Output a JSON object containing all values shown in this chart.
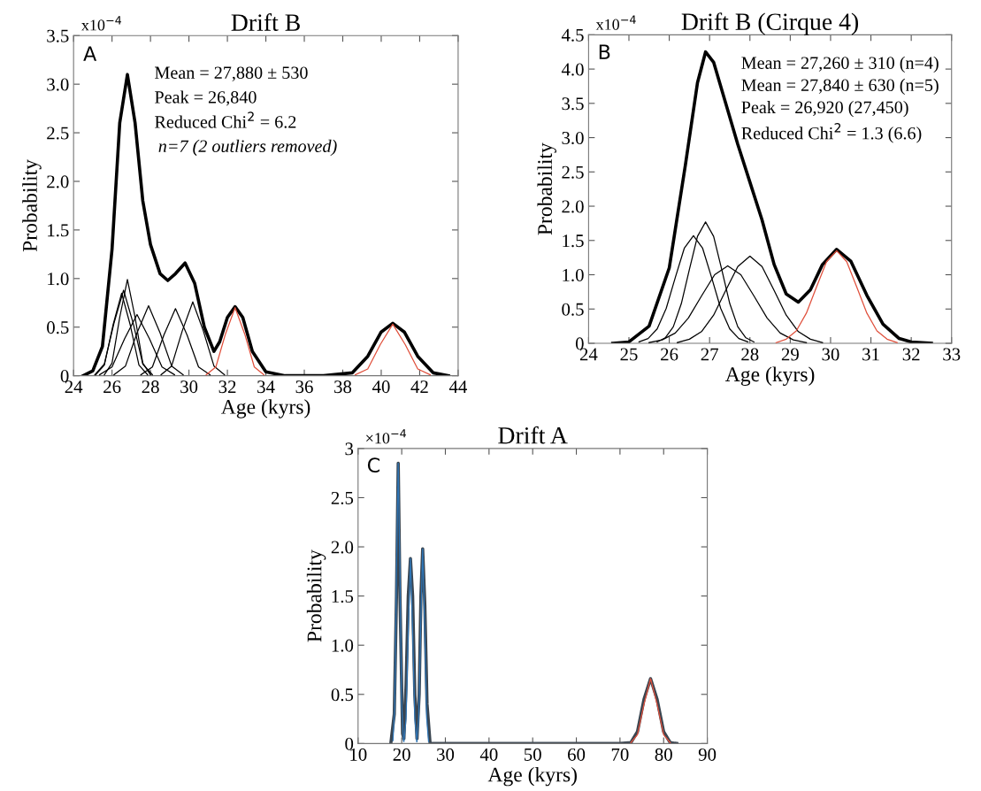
{
  "chart_data": [
    {
      "type": "line",
      "title": "Drift B",
      "xlabel": "Age (kyrs)",
      "ylabel": "Probability",
      "annotations": [
        "x10$^{−4}$",
        "A",
        "Mean = 27,880 ± 530",
        "Peak = 26,840",
        "Reduced Chi$^{2}$ = 6.2",
        "n=7 (2 outliers removed)"
      ],
      "xlim": [
        24,
        44
      ],
      "xticks": [
        24,
        26,
        28,
        30,
        32,
        34,
        36,
        38,
        40,
        42,
        44
      ],
      "ylim": [
        0,
        3.5
      ],
      "yticks": [
        0,
        0.5,
        {
          "value": 1,
          "label": "1.0"
        },
        1.5,
        {
          "value": 2,
          "label": "2.0"
        },
        2.5,
        {
          "value": 3,
          "label": "3.0"
        },
        3.5
      ],
      "series": [
        {
          "color": "#000000",
          "x": [
            24.5,
            25,
            25.5,
            26,
            26.4,
            26.8,
            27.2,
            27.6,
            28,
            28.5,
            28.9,
            29.3,
            29.8,
            30.3,
            30.8,
            31.3,
            31.6,
            32,
            32.4,
            32.8,
            33.3,
            34,
            35,
            37,
            38.5,
            39.3,
            40,
            40.6,
            41.2,
            41.9,
            42.7,
            43.5
          ],
          "values": [
            0,
            0.05,
            0.3,
            1.3,
            2.6,
            3.1,
            2.6,
            1.8,
            1.35,
            1.05,
            0.98,
            1.05,
            1.16,
            0.95,
            0.5,
            0.25,
            0.35,
            0.6,
            0.71,
            0.6,
            0.25,
            0.04,
            0,
            0,
            0.03,
            0.2,
            0.45,
            0.54,
            0.45,
            0.2,
            0.03,
            0
          ]
        },
        {
          "color": "#000000",
          "x": [
            25.15,
            25.6,
            26.05,
            26.5,
            26.95,
            27.4,
            27.85
          ],
          "values": [
            0.01,
            0.11,
            0.52,
            0.85,
            0.52,
            0.11,
            0.01
          ]
        },
        {
          "color": "#000000",
          "x": [
            25.1,
            25.6,
            26.1,
            26.6,
            27.1,
            27.6,
            28.1
          ],
          "values": [
            0.01,
            0.12,
            0.54,
            0.88,
            0.54,
            0.12,
            0.01
          ]
        },
        {
          "color": "#000000",
          "x": [
            25.6,
            26,
            26.4,
            26.8,
            27.2,
            27.6,
            28
          ],
          "values": [
            0.01,
            0.13,
            0.6,
            0.99,
            0.6,
            0.13,
            0.01
          ]
        },
        {
          "color": "#000000",
          "x": [
            25.35,
            26,
            26.65,
            27.3,
            27.95,
            28.6,
            29.25
          ],
          "values": [
            0.01,
            0.09,
            0.38,
            0.63,
            0.38,
            0.09,
            0.01
          ]
        },
        {
          "color": "#000000",
          "x": [
            26.1,
            26.7,
            27.3,
            27.9,
            28.5,
            29.1,
            29.7
          ],
          "values": [
            0.01,
            0.1,
            0.44,
            0.72,
            0.44,
            0.1,
            0.01
          ]
        },
        {
          "color": "#000000",
          "x": [
            27.5,
            28.1,
            28.7,
            29.3,
            29.9,
            30.5,
            31.1
          ],
          "values": [
            0.01,
            0.09,
            0.42,
            0.69,
            0.42,
            0.09,
            0.01
          ]
        },
        {
          "color": "#000000",
          "x": [
            28.55,
            29.1,
            29.65,
            30.2,
            30.75,
            31.3,
            31.85
          ],
          "values": [
            0.01,
            0.1,
            0.46,
            0.76,
            0.46,
            0.1,
            0.01
          ]
        },
        {
          "color": "#e0503c",
          "x": [
            30.9,
            31.4,
            31.9,
            32.4,
            32.9,
            33.4,
            33.9
          ],
          "values": [
            0.01,
            0.09,
            0.43,
            0.7,
            0.43,
            0.09,
            0.01
          ]
        },
        {
          "color": "#e0503c",
          "x": [
            38.65,
            39.3,
            39.95,
            40.6,
            41.25,
            41.9,
            42.55
          ],
          "values": [
            0.01,
            0.07,
            0.32,
            0.53,
            0.32,
            0.07,
            0.01
          ]
        }
      ]
    },
    {
      "type": "line",
      "title": "Drift B (Cirque 4)",
      "xlabel": "Age (kyrs)",
      "ylabel": "Probability",
      "annotations": [
        "x10$^{−4}$",
        "B",
        "Mean = 27,260 ± 310 (n=4)",
        "Mean = 27,840 ± 630 (n=5)",
        "Peak = 26,920 (27,450)",
        "Reduced Chi$^{2}$ = 1.3 (6.6)"
      ],
      "xlim": [
        24,
        33
      ],
      "xticks": [
        24,
        25,
        26,
        27,
        28,
        29,
        30,
        31,
        32,
        33
      ],
      "ylim": [
        0,
        4.5
      ],
      "yticks": [
        0,
        0.5,
        {
          "value": 1,
          "label": "1.0"
        },
        1.5,
        {
          "value": 2,
          "label": "2.0"
        },
        2.5,
        {
          "value": 3,
          "label": "3.0"
        },
        3.5,
        {
          "value": 4,
          "label": "4.0"
        },
        4.5
      ],
      "series": [
        {
          "color": "#000000",
          "x": [
            24.6,
            25,
            25.5,
            26,
            26.4,
            26.7,
            26.9,
            27.1,
            27.4,
            27.7,
            28,
            28.3,
            28.6,
            28.9,
            29.2,
            29.5,
            29.8,
            30.15,
            30.5,
            30.9,
            31.3,
            31.7,
            32,
            32.5
          ],
          "values": [
            0,
            0.02,
            0.25,
            1.1,
            2.6,
            3.8,
            4.25,
            4.1,
            3.5,
            2.9,
            2.35,
            1.8,
            1.15,
            0.72,
            0.6,
            0.78,
            1.15,
            1.37,
            1.2,
            0.7,
            0.28,
            0.07,
            0.02,
            0
          ]
        },
        {
          "color": "#000000",
          "x": [
            25.25,
            25.475,
            25.7,
            25.925,
            26.15,
            26.375,
            26.6,
            26.825,
            27.05,
            27.275,
            27.5,
            27.725,
            27.95
          ],
          "values": [
            0.02,
            0.07,
            0.21,
            0.51,
            0.96,
            1.39,
            1.57,
            1.39,
            0.96,
            0.51,
            0.21,
            0.07,
            0.02
          ]
        },
        {
          "color": "#000000",
          "x": [
            25.7,
            25.9,
            26.1,
            26.3,
            26.5,
            26.7,
            26.9,
            27.1,
            27.3,
            27.5,
            27.7,
            27.9,
            28.1
          ],
          "values": [
            0.02,
            0.08,
            0.24,
            0.58,
            1.08,
            1.56,
            1.77,
            1.56,
            1.08,
            0.58,
            0.24,
            0.08,
            0.02
          ]
        },
        {
          "color": "#000000",
          "x": [
            25.5,
            25.825,
            26.15,
            26.475,
            26.8,
            27.125,
            27.45,
            27.775,
            28.1,
            28.425,
            28.75,
            29.075,
            29.4
          ],
          "values": [
            0.01,
            0.05,
            0.15,
            0.37,
            0.69,
            1.0,
            1.13,
            1.0,
            0.69,
            0.37,
            0.15,
            0.05,
            0.01
          ]
        },
        {
          "color": "#000000",
          "x": [
            26.2,
            26.5,
            26.8,
            27.1,
            27.4,
            27.7,
            28,
            28.3,
            28.6,
            28.9,
            29.2,
            29.5,
            29.8
          ],
          "values": [
            0.01,
            0.06,
            0.17,
            0.41,
            0.77,
            1.12,
            1.27,
            1.12,
            0.77,
            0.41,
            0.17,
            0.06,
            0.01
          ]
        },
        {
          "color": "#e0503c",
          "x": [
            28.65,
            28.9,
            29.15,
            29.4,
            29.65,
            29.9,
            30.15,
            30.4,
            30.65,
            30.9,
            31.15,
            31.4,
            31.65
          ],
          "values": [
            0.01,
            0.06,
            0.18,
            0.44,
            0.82,
            1.19,
            1.35,
            1.19,
            0.82,
            0.44,
            0.18,
            0.06,
            0.01
          ]
        }
      ]
    },
    {
      "type": "line",
      "title": "Drift A",
      "xlabel": "Age (kyrs)",
      "ylabel": "Probability",
      "annotations": [
        "×10$^{−4}$",
        "C"
      ],
      "xlim": [
        10,
        90
      ],
      "xticks": [
        10,
        20,
        30,
        40,
        50,
        60,
        70,
        80,
        90
      ],
      "ylim": [
        0,
        3
      ],
      "yticks": [
        0,
        0.5,
        {
          "value": 1,
          "label": "1.0"
        },
        1.5,
        {
          "value": 2,
          "label": "2.0"
        },
        2.5,
        3
      ],
      "series": [
        {
          "color": "#3a4550",
          "x": [
            17.5,
            18.3,
            18.8,
            19.2,
            19.6,
            20.2,
            20.5,
            21,
            21.5,
            22,
            22.5,
            23,
            23.5,
            24,
            24.4,
            24.8,
            25.3,
            25.8,
            26.5,
            30,
            70,
            72.5,
            74,
            75.5,
            77,
            78.5,
            80,
            81.5,
            83
          ],
          "values": [
            0,
            0.3,
            1.5,
            2.85,
            1.5,
            0.1,
            0.05,
            0.6,
            1.5,
            1.88,
            1.5,
            0.5,
            0.05,
            0.5,
            1.5,
            1.98,
            1.4,
            0.4,
            0,
            0,
            0,
            0.01,
            0.12,
            0.45,
            0.66,
            0.45,
            0.12,
            0.01,
            0
          ]
        },
        {
          "color": "#2e75b6",
          "x": [
            18,
            18.4,
            18.8,
            19.2,
            19.6,
            20,
            20.4
          ],
          "values": [
            0.03,
            0.39,
            1.73,
            2.85,
            1.73,
            0.39,
            0.03
          ]
        },
        {
          "color": "#2e75b6",
          "x": [
            20.5,
            21,
            21.5,
            22,
            22.5,
            23,
            23.5
          ],
          "values": [
            0.02,
            0.25,
            1.14,
            1.88,
            1.14,
            0.25,
            0.02
          ]
        },
        {
          "color": "#2e75b6",
          "x": [
            23.45,
            23.9,
            24.35,
            24.8,
            25.25,
            25.7,
            26.15
          ],
          "values": [
            0.02,
            0.27,
            1.2,
            1.98,
            1.2,
            0.27,
            0.02
          ]
        },
        {
          "color": "#e0503c",
          "x": [
            72.5,
            74,
            75.5,
            77,
            78.5,
            80,
            81.5
          ],
          "values": [
            0.01,
            0.09,
            0.4,
            0.66,
            0.4,
            0.09,
            0.01
          ]
        }
      ]
    }
  ]
}
